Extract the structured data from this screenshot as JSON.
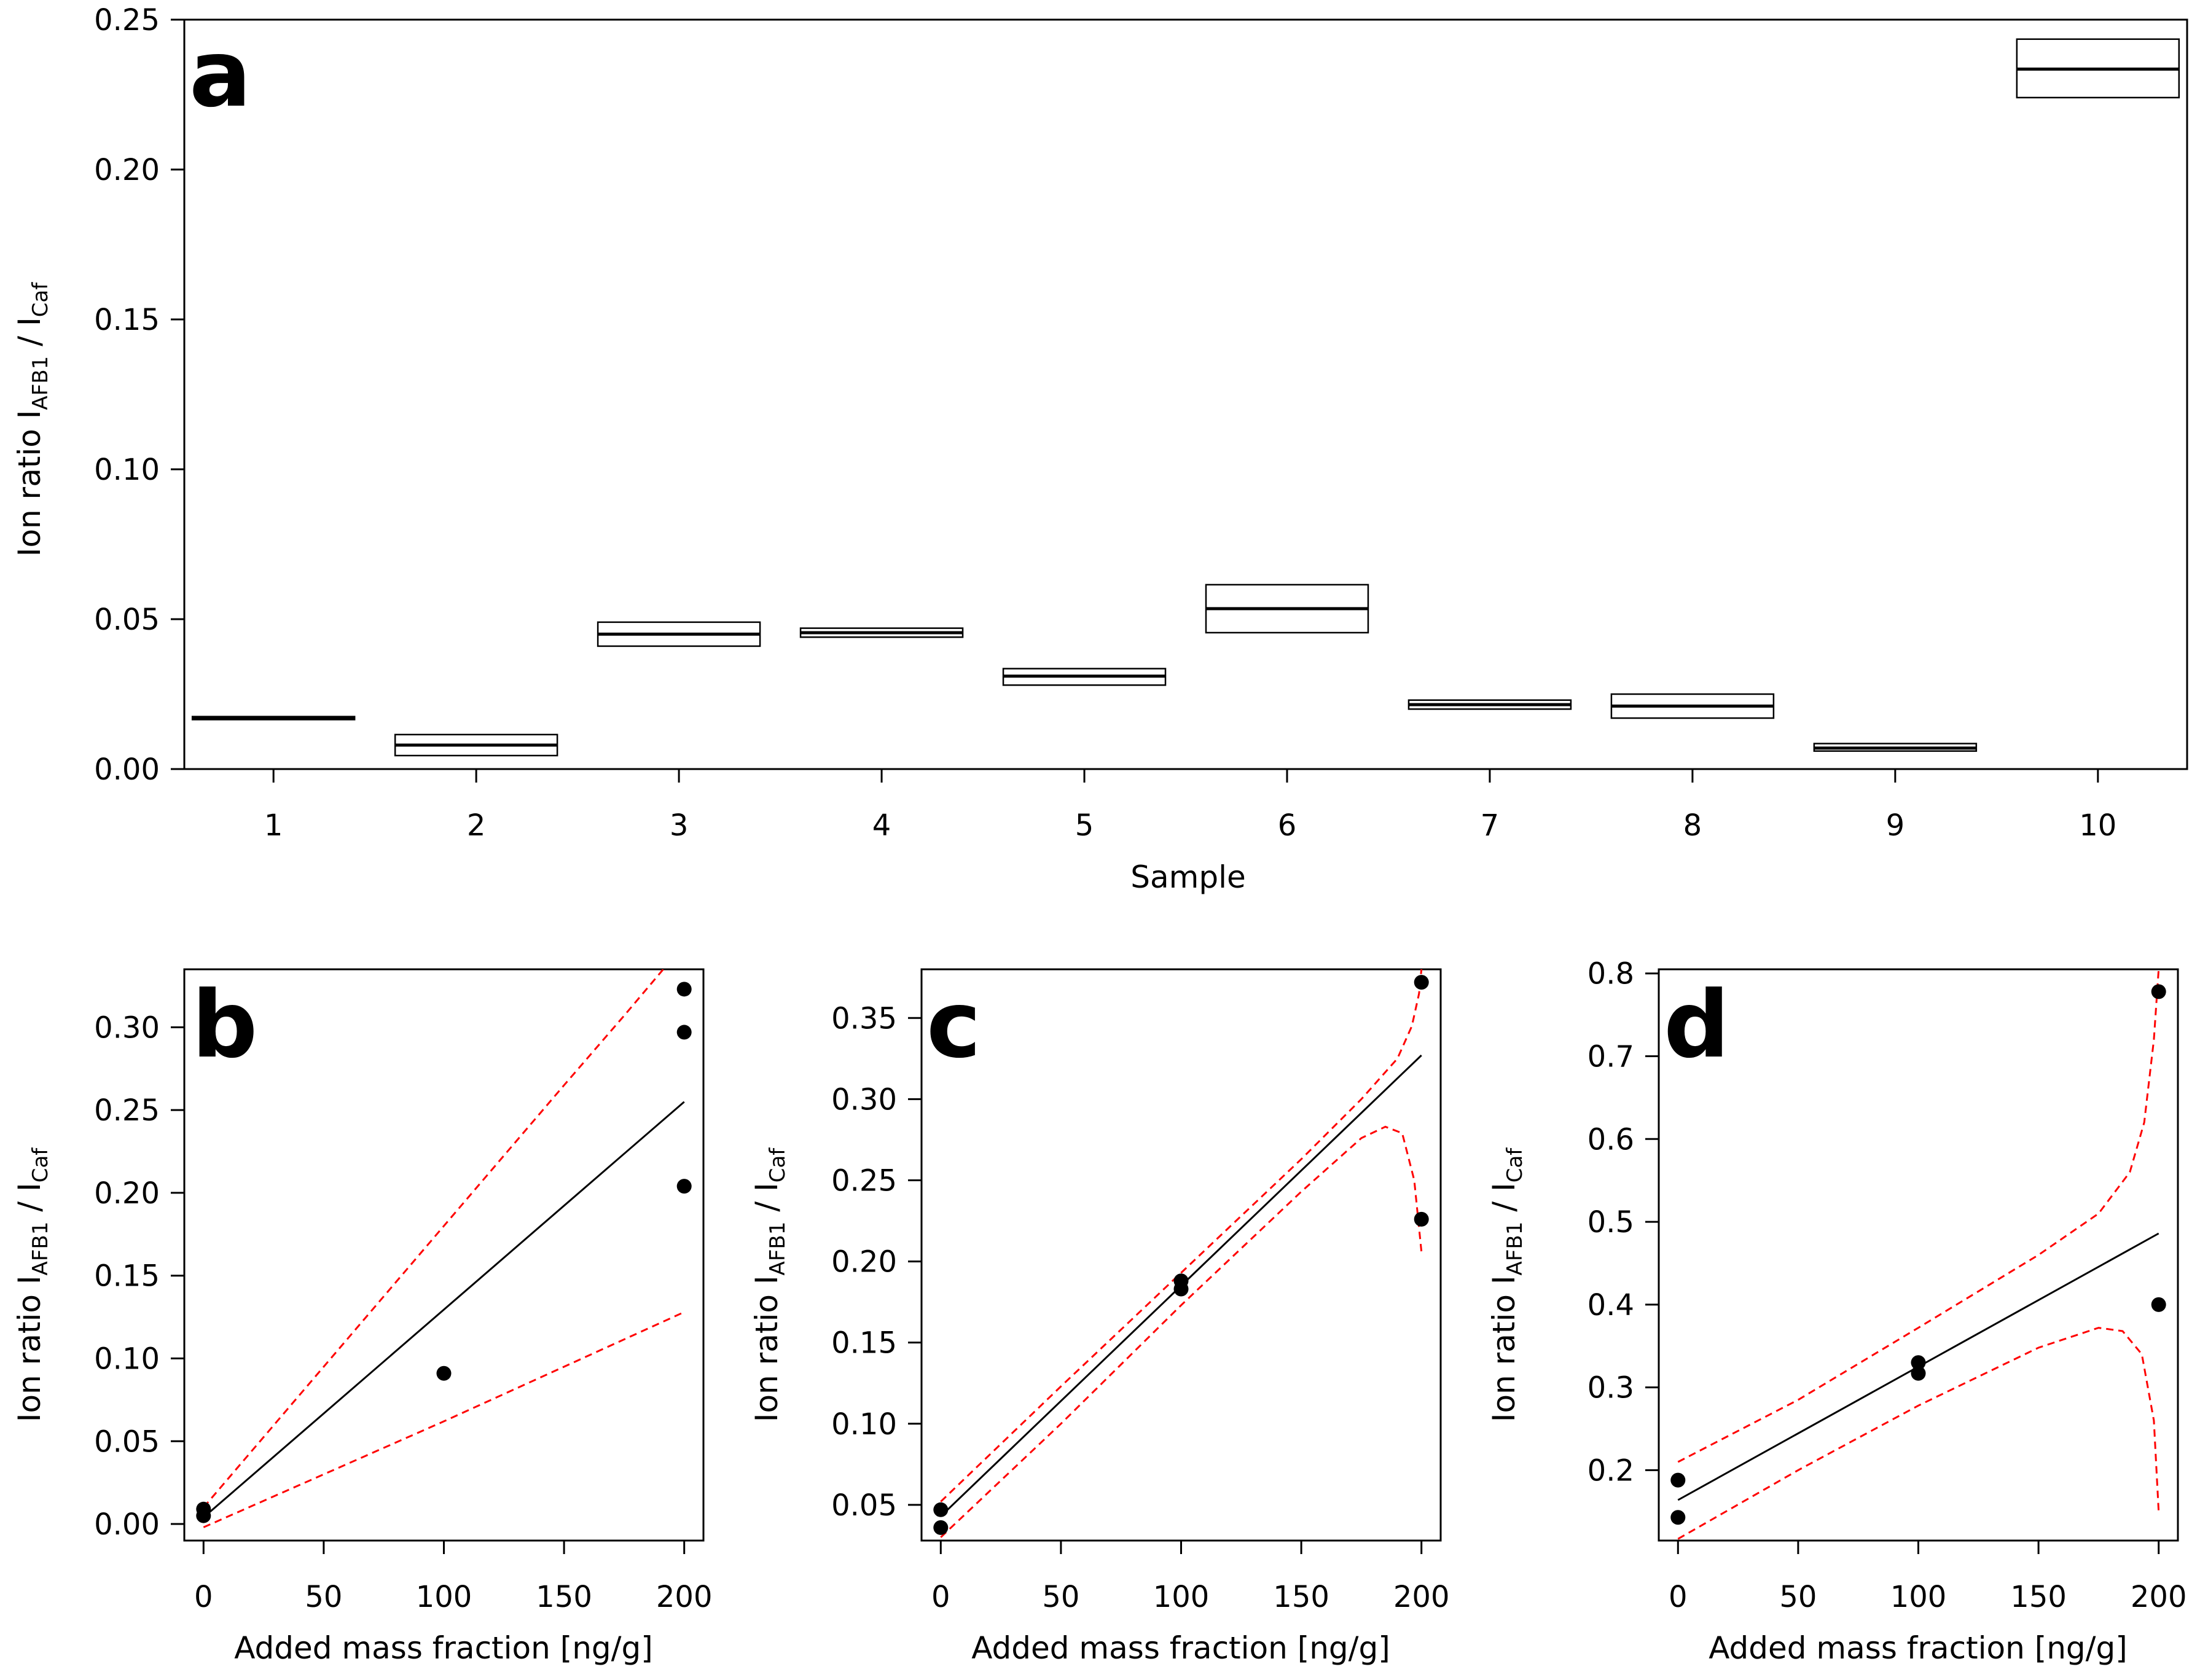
{
  "chart_data": [
    {
      "id": "a",
      "type": "box",
      "panel_label": "a",
      "xlabel": "Sample",
      "ylabel": {
        "prefix": "Ion ratio  I",
        "sub1": "AFB1",
        "mid": " / I",
        "sub2": "Caf"
      },
      "ylim": [
        0.0,
        0.25
      ],
      "yticks": [
        0.0,
        0.05,
        0.1,
        0.15,
        0.2,
        0.25
      ],
      "ytick_labels": [
        "0.00",
        "0.05",
        "0.10",
        "0.15",
        "0.20",
        "0.25"
      ],
      "categories": [
        "1",
        "2",
        "3",
        "4",
        "5",
        "6",
        "7",
        "8",
        "9",
        "10"
      ],
      "boxes": [
        {
          "sample": "1",
          "low": 0.0165,
          "median": 0.017,
          "high": 0.0175
        },
        {
          "sample": "2",
          "low": 0.0045,
          "median": 0.008,
          "high": 0.0115
        },
        {
          "sample": "3",
          "low": 0.041,
          "median": 0.045,
          "high": 0.049
        },
        {
          "sample": "4",
          "low": 0.044,
          "median": 0.0455,
          "high": 0.047
        },
        {
          "sample": "5",
          "low": 0.028,
          "median": 0.031,
          "high": 0.0335
        },
        {
          "sample": "6",
          "low": 0.0455,
          "median": 0.0535,
          "high": 0.0615
        },
        {
          "sample": "7",
          "low": 0.02,
          "median": 0.0215,
          "high": 0.023
        },
        {
          "sample": "8",
          "low": 0.017,
          "median": 0.021,
          "high": 0.025
        },
        {
          "sample": "9",
          "low": 0.006,
          "median": 0.007,
          "high": 0.0085
        },
        {
          "sample": "10",
          "low": 0.224,
          "median": 0.2335,
          "high": 0.2435
        }
      ]
    },
    {
      "id": "b",
      "type": "scatter",
      "panel_label": "b",
      "xlabel": "Added mass fraction [ng/g]",
      "ylabel": {
        "prefix": "Ion ratio  I",
        "sub1": "AFB1",
        "mid": " / I",
        "sub2": "Caf"
      },
      "xlim": [
        -8,
        208
      ],
      "ylim": [
        -0.01,
        0.335
      ],
      "xticks": [
        0,
        50,
        100,
        150,
        200
      ],
      "xtick_labels": [
        "0",
        "50",
        "100",
        "150",
        "200"
      ],
      "yticks": [
        0.0,
        0.05,
        0.1,
        0.15,
        0.2,
        0.25,
        0.3
      ],
      "ytick_labels": [
        "0.00",
        "0.05",
        "0.10",
        "0.15",
        "0.20",
        "0.25",
        "0.30"
      ],
      "points": [
        [
          0,
          0.005
        ],
        [
          0,
          0.009
        ],
        [
          100,
          0.091
        ],
        [
          200,
          0.204
        ],
        [
          200,
          0.297
        ],
        [
          200,
          0.323
        ]
      ],
      "fit": [
        [
          0,
          0.004
        ],
        [
          200,
          0.255
        ]
      ],
      "band_upper": [
        [
          0,
          0.01
        ],
        [
          50,
          0.095
        ],
        [
          100,
          0.18
        ],
        [
          150,
          0.265
        ],
        [
          175,
          0.307
        ],
        [
          200,
          0.35
        ]
      ],
      "band_lower": [
        [
          0,
          -0.002
        ],
        [
          50,
          0.03
        ],
        [
          100,
          0.062
        ],
        [
          150,
          0.095
        ],
        [
          200,
          0.128
        ]
      ],
      "colors": {
        "points": "#000000",
        "fit": "#000000",
        "band": "#ff0000"
      }
    },
    {
      "id": "c",
      "type": "scatter",
      "panel_label": "c",
      "xlabel": "Added mass fraction [ng/g]",
      "ylabel": {
        "prefix": "Ion ratio  I",
        "sub1": "AFB1",
        "mid": " / I",
        "sub2": "Caf"
      },
      "xlim": [
        -8,
        208
      ],
      "ylim": [
        0.028,
        0.38
      ],
      "xticks": [
        0,
        50,
        100,
        150,
        200
      ],
      "xtick_labels": [
        "0",
        "50",
        "100",
        "150",
        "200"
      ],
      "yticks": [
        0.05,
        0.1,
        0.15,
        0.2,
        0.25,
        0.3,
        0.35
      ],
      "ytick_labels": [
        "0.05",
        "0.10",
        "0.15",
        "0.20",
        "0.25",
        "0.30",
        "0.35"
      ],
      "points": [
        [
          0,
          0.036
        ],
        [
          0,
          0.047
        ],
        [
          100,
          0.183
        ],
        [
          100,
          0.188
        ],
        [
          200,
          0.226
        ],
        [
          200,
          0.372
        ]
      ],
      "fit": [
        [
          0,
          0.043
        ],
        [
          200,
          0.327
        ]
      ],
      "band_upper": [
        [
          0,
          0.052
        ],
        [
          50,
          0.123
        ],
        [
          100,
          0.193
        ],
        [
          150,
          0.263
        ],
        [
          175,
          0.3
        ],
        [
          190,
          0.325
        ],
        [
          196,
          0.345
        ],
        [
          199,
          0.365
        ],
        [
          200,
          0.38
        ]
      ],
      "band_lower": [
        [
          0,
          0.03
        ],
        [
          50,
          0.1
        ],
        [
          100,
          0.173
        ],
        [
          150,
          0.243
        ],
        [
          175,
          0.276
        ],
        [
          185,
          0.283
        ],
        [
          192,
          0.279
        ],
        [
          197,
          0.25
        ],
        [
          200,
          0.206
        ]
      ],
      "colors": {
        "points": "#000000",
        "fit": "#000000",
        "band": "#ff0000"
      }
    },
    {
      "id": "d",
      "type": "scatter",
      "panel_label": "d",
      "xlabel": "Added mass fraction [ng/g]",
      "ylabel": {
        "prefix": "Ion ratio  I",
        "sub1": "AFB1",
        "mid": " / I",
        "sub2": "Caf"
      },
      "xlim": [
        -8,
        208
      ],
      "ylim": [
        0.115,
        0.805
      ],
      "xticks": [
        0,
        50,
        100,
        150,
        200
      ],
      "xtick_labels": [
        "0",
        "50",
        "100",
        "150",
        "200"
      ],
      "yticks": [
        0.2,
        0.3,
        0.4,
        0.5,
        0.6,
        0.7,
        0.8
      ],
      "ytick_labels": [
        "0.2",
        "0.3",
        "0.4",
        "0.5",
        "0.6",
        "0.7",
        "0.8"
      ],
      "points": [
        [
          0,
          0.143
        ],
        [
          0,
          0.188
        ],
        [
          100,
          0.317
        ],
        [
          100,
          0.33
        ],
        [
          200,
          0.4
        ],
        [
          200,
          0.778
        ]
      ],
      "fit": [
        [
          0,
          0.164
        ],
        [
          200,
          0.486
        ]
      ],
      "band_upper": [
        [
          0,
          0.21
        ],
        [
          50,
          0.285
        ],
        [
          100,
          0.372
        ],
        [
          150,
          0.46
        ],
        [
          175,
          0.51
        ],
        [
          188,
          0.56
        ],
        [
          194,
          0.62
        ],
        [
          198,
          0.72
        ],
        [
          200,
          0.805
        ]
      ],
      "band_lower": [
        [
          0,
          0.117
        ],
        [
          50,
          0.2
        ],
        [
          100,
          0.278
        ],
        [
          150,
          0.348
        ],
        [
          175,
          0.372
        ],
        [
          185,
          0.368
        ],
        [
          193,
          0.34
        ],
        [
          198,
          0.26
        ],
        [
          200,
          0.15
        ]
      ],
      "colors": {
        "points": "#000000",
        "fit": "#000000",
        "band": "#ff0000"
      }
    }
  ]
}
